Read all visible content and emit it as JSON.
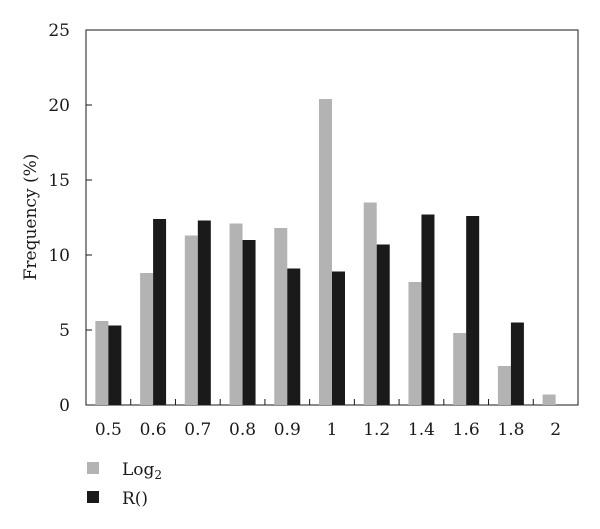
{
  "chart_data": {
    "type": "bar",
    "categories": [
      "0.5",
      "0.6",
      "0.7",
      "0.8",
      "0.9",
      "1",
      "1.2",
      "1.4",
      "1.6",
      "1.8",
      "2"
    ],
    "series": [
      {
        "name": "Log",
        "name_subscript": "2",
        "color": "#b3b3b3",
        "values": [
          5.6,
          8.8,
          11.3,
          12.1,
          11.8,
          20.4,
          13.5,
          8.2,
          4.8,
          2.6,
          0.7
        ]
      },
      {
        "name": "R()",
        "color": "#1a1a1a",
        "values": [
          5.3,
          12.4,
          12.3,
          11.0,
          9.1,
          8.9,
          10.7,
          12.7,
          12.6,
          5.5,
          0
        ]
      }
    ],
    "ylabel": "Frequency (%)",
    "xlabel": "",
    "ylim": [
      0,
      25
    ],
    "yticks": [
      "0",
      "5",
      "10",
      "15",
      "20",
      "25"
    ],
    "grid": false,
    "legend_position": "bottom-left"
  }
}
